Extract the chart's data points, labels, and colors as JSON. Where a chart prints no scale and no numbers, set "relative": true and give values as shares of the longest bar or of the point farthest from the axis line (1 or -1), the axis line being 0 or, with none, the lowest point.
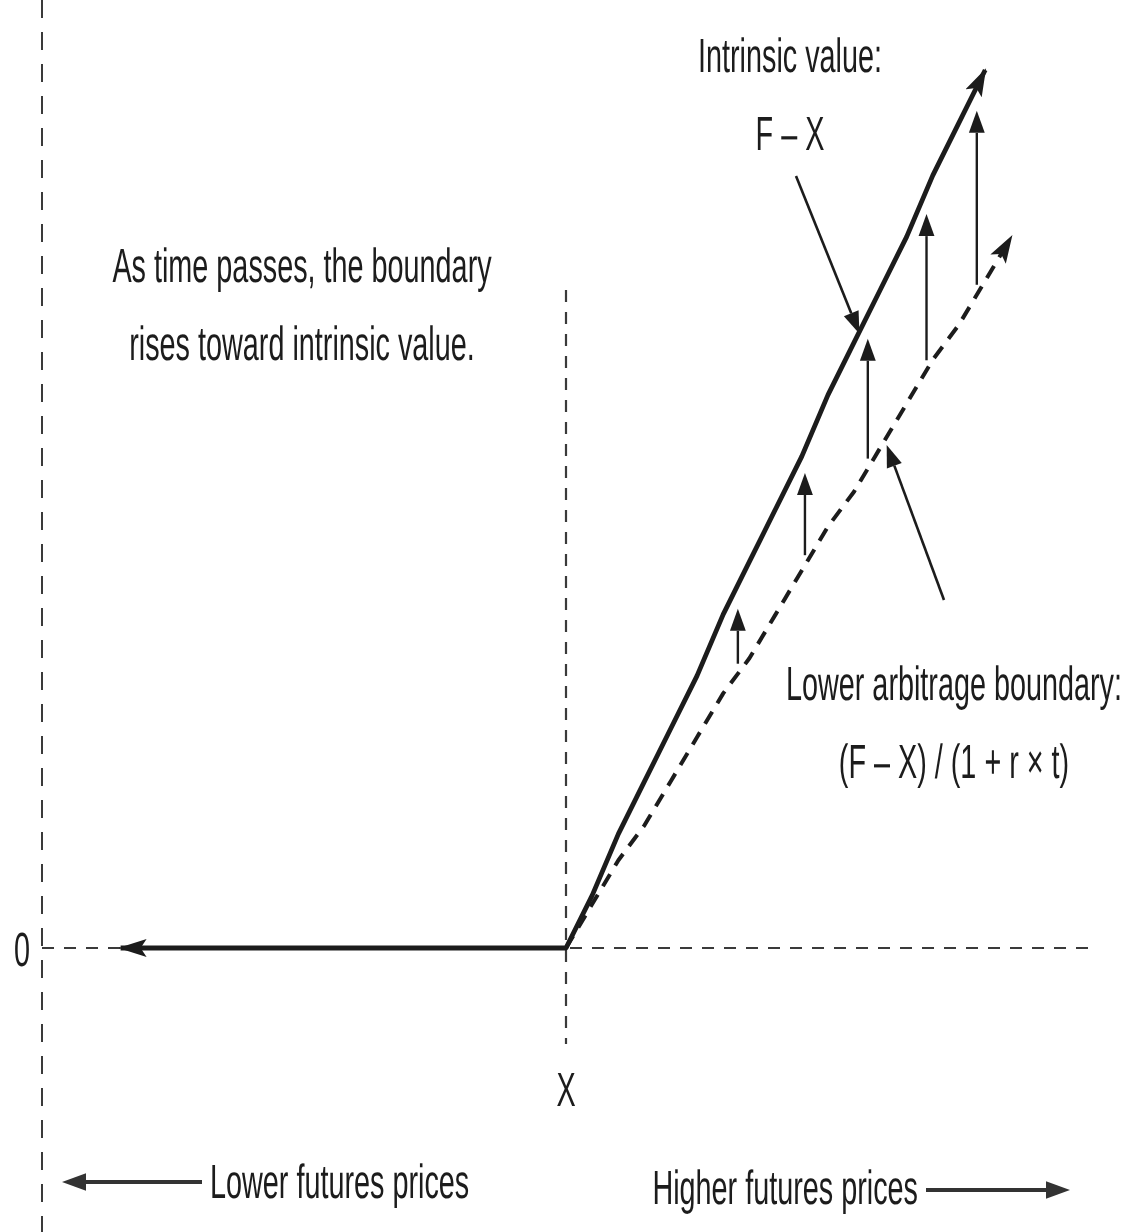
{
  "chart_data": {
    "type": "line",
    "relative": true,
    "categories": [
      null,
      null,
      null,
      null,
      null,
      null,
      null,
      null,
      null,
      null,
      null,
      null,
      null,
      null,
      null,
      null,
      null,
      null,
      null,
      null,
      null,
      null,
      null,
      null,
      null,
      null,
      null,
      null,
      null,
      null,
      null,
      null,
      null,
      null,
      null,
      null,
      null,
      null,
      null,
      null,
      null
    ],
    "series": [
      {
        "color": "#1c1c1c",
        "line_style": "solid",
        "values": [
          null,
          null,
          null,
          0,
          0,
          0,
          0,
          0,
          0,
          0,
          0,
          0,
          0,
          0,
          0,
          0,
          0,
          0,
          0,
          0,
          0,
          0.06,
          0.13,
          0.19,
          0.25,
          0.31,
          0.38,
          0.44,
          0.5,
          0.56,
          0.63,
          0.69,
          0.75,
          0.81,
          0.88,
          0.94,
          1,
          null,
          null,
          null,
          null
        ]
      },
      {
        "color": "#1c1c1c",
        "line_style": "dashed",
        "values": [
          null,
          null,
          null,
          null,
          null,
          null,
          null,
          null,
          null,
          null,
          null,
          null,
          null,
          null,
          null,
          null,
          null,
          null,
          null,
          null,
          0,
          0.05,
          0.1,
          0.14,
          0.19,
          0.24,
          0.29,
          0.33,
          0.38,
          0.43,
          0.48,
          0.52,
          0.57,
          0.62,
          0.67,
          0.71,
          0.76,
          0.81,
          null,
          null,
          null
        ]
      }
    ],
    "ref_lines": [
      {
        "axis": "x",
        "label": "X",
        "line_style": "dashed"
      }
    ],
    "annotations": [
      "Intrinsic value:\nF – X",
      "As time passes, the boundary\nrises toward intrinsic value.",
      "Lower arbitrage boundary:\n(F – X) / (1 + r × t)",
      "Lower futures prices",
      "Higher futures prices",
      "0"
    ]
  }
}
